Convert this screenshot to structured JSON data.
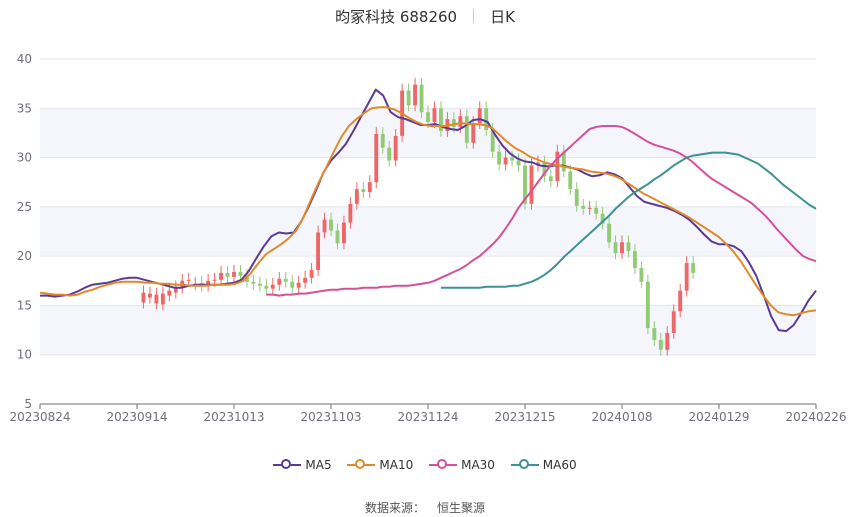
{
  "header": {
    "title": "昀冢科技 688260",
    "period": "日K"
  },
  "source": {
    "label": "数据来源：",
    "value": "恒生聚源"
  },
  "colors": {
    "up": "#ee6666",
    "down": "#91cc75",
    "ma5": "#5b3a96",
    "ma10": "#e08a2c",
    "ma30": "#d4519a",
    "ma60": "#3d9292"
  },
  "chart_data": {
    "type": "candlestick",
    "ylim": [
      5,
      40
    ],
    "y_ticks": [
      "5",
      "10",
      "15",
      "20",
      "25",
      "30",
      "35",
      "40"
    ],
    "x_ticks": [
      "20230824",
      "20230914",
      "20231013",
      "20231103",
      "20231124",
      "20231215",
      "20240108",
      "20240129",
      "20240226"
    ],
    "x_tick_positions": [
      0,
      15,
      30,
      45,
      60,
      75,
      90,
      105,
      120
    ],
    "series": [
      {
        "name": "MA5",
        "values": [
          16.0,
          16.0,
          15.9,
          16.0,
          16.1,
          16.4,
          16.8,
          17.1,
          17.2,
          17.3,
          17.5,
          17.7,
          17.8,
          17.8,
          17.6,
          17.4,
          17.2,
          17.0,
          16.8,
          16.8,
          17.0,
          17.1,
          17.1,
          17.1,
          17.1,
          17.2,
          17.3,
          17.6,
          18.5,
          19.8,
          21.0,
          22.0,
          22.4,
          22.3,
          22.4,
          23.5,
          25.0,
          26.7,
          28.5,
          29.7,
          30.5,
          31.4,
          32.7,
          34.1,
          35.5,
          36.9,
          36.3,
          34.6,
          34.1,
          33.9,
          33.6,
          33.3,
          33.3,
          33.4,
          33.1,
          32.9,
          32.8,
          33.2,
          33.8,
          33.9,
          33.6,
          32.3,
          31.2,
          30.4,
          29.9,
          29.6,
          29.5,
          29.2,
          29.1,
          29.2,
          29.2,
          29.0,
          28.8,
          28.4,
          28.1,
          28.2,
          28.5,
          28.3,
          27.9,
          27.0,
          26.1,
          25.5,
          25.3,
          25.1,
          24.9,
          24.6,
          24.2,
          23.7,
          23.0,
          22.2,
          21.5,
          21.2,
          21.2,
          21.0,
          20.5,
          19.4,
          18.0,
          16.0,
          13.9,
          12.5,
          12.4,
          13.0,
          14.2,
          15.5,
          16.5
        ]
      },
      {
        "name": "MA10",
        "values": [
          16.3,
          16.2,
          16.1,
          16.1,
          16.0,
          16.1,
          16.4,
          16.6,
          16.9,
          17.1,
          17.3,
          17.4,
          17.4,
          17.4,
          17.3,
          17.3,
          17.2,
          17.2,
          17.1,
          17.1,
          17.0,
          17.0,
          17.0,
          17.1,
          17.1,
          17.1,
          17.2,
          17.5,
          18.3,
          19.3,
          20.2,
          20.7,
          21.2,
          21.8,
          22.6,
          24.0,
          25.8,
          27.5,
          29.0,
          30.6,
          32.1,
          33.2,
          33.9,
          34.5,
          35.0,
          35.1,
          35.1,
          34.9,
          34.5,
          34.0,
          33.6,
          33.3,
          33.2,
          33.2,
          33.2,
          33.4,
          33.5,
          33.4,
          33.4,
          33.3,
          33.0,
          32.3,
          31.6,
          31.0,
          30.6,
          30.1,
          29.8,
          29.5,
          29.3,
          29.2,
          29.0,
          28.9,
          28.8,
          28.6,
          28.5,
          28.4,
          28.2,
          27.9,
          27.4,
          26.9,
          26.4,
          26.0,
          25.6,
          25.2,
          24.8,
          24.4,
          24.0,
          23.5,
          23.0,
          22.5,
          22.0,
          21.3,
          20.5,
          19.5,
          18.3,
          17.1,
          16.0,
          15.0,
          14.3,
          14.1,
          14.0,
          14.2,
          14.4,
          14.5
        ]
      },
      {
        "name": "MA30",
        "values": [
          16.1,
          16.1,
          16.0,
          16.1,
          16.1,
          16.2,
          16.2,
          16.3,
          16.4,
          16.5,
          16.6,
          16.6,
          16.7,
          16.7,
          16.7,
          16.8,
          16.8,
          16.8,
          16.9,
          16.9,
          17.0,
          17.0,
          17.0,
          17.1,
          17.2,
          17.3,
          17.5,
          17.8,
          18.1,
          18.4,
          18.7,
          19.1,
          19.6,
          20.0,
          20.6,
          21.2,
          21.9,
          22.8,
          23.8,
          24.9,
          25.8,
          26.6,
          27.5,
          28.4,
          29.2,
          29.9,
          30.5,
          31.1,
          31.7,
          32.3,
          32.9,
          33.1,
          33.2,
          33.2,
          33.2,
          33.1,
          32.8,
          32.4,
          32.0,
          31.6,
          31.3,
          31.1,
          30.9,
          30.7,
          30.4,
          30.0,
          29.5,
          28.9,
          28.3,
          27.8,
          27.4,
          27.0,
          26.6,
          26.2,
          25.8,
          25.4,
          24.8,
          24.2,
          23.5,
          22.7,
          22.0,
          21.3,
          20.6,
          20.0,
          19.7,
          19.5
        ]
      },
      {
        "name": "MA60",
        "values": [
          16.8,
          16.8,
          16.8,
          16.8,
          16.8,
          16.8,
          16.8,
          16.9,
          16.9,
          16.9,
          16.9,
          17.0,
          17.0,
          17.2,
          17.4,
          17.7,
          18.1,
          18.6,
          19.2,
          19.9,
          20.5,
          21.1,
          21.7,
          22.3,
          22.9,
          23.5,
          24.1,
          24.8,
          25.4,
          26.0,
          26.5,
          26.9,
          27.3,
          27.8,
          28.2,
          28.7,
          29.2,
          29.6,
          30.0,
          30.2,
          30.3,
          30.4,
          30.5,
          30.5,
          30.5,
          30.4,
          30.3,
          30.0,
          29.7,
          29.4,
          28.9,
          28.4,
          27.8,
          27.2,
          26.7,
          26.2,
          25.7,
          25.2,
          24.8
        ]
      },
      {
        "name": "K",
        "values": [
          15.3,
          16.3,
          15.8,
          16.2,
          15.2,
          16.1,
          15.1,
          16.2,
          16.0,
          16.5,
          16.3,
          16.8,
          16.8,
          17.5,
          17.5,
          17.6,
          17.2,
          17.2,
          17.3,
          17.0,
          17.0,
          17.5,
          17.5,
          17.6,
          17.6,
          18.3,
          18.3,
          17.9,
          17.9,
          18.4,
          18.4,
          18.0,
          18.0,
          17.4,
          17.4,
          17.2,
          17.2,
          17.0,
          17.0,
          16.7,
          16.7,
          17.1,
          17.1,
          17.7,
          17.7,
          17.4,
          17.4,
          16.8,
          16.8,
          17.3,
          17.3,
          17.8,
          17.8,
          18.6,
          18.6,
          22.4,
          22.4,
          23.7,
          23.7,
          22.6,
          22.6,
          21.3,
          21.3,
          23.4,
          23.4,
          25.3,
          25.3,
          26.8,
          26.8,
          26.5,
          26.5,
          27.5,
          27.5,
          32.4,
          32.4,
          31.0,
          31.0,
          29.7,
          29.7,
          32.2,
          32.2,
          36.8,
          36.8,
          35.3,
          35.3,
          37.4,
          37.4,
          34.6,
          34.6,
          33.6,
          33.6,
          35.0,
          35.0,
          32.7,
          32.7,
          33.9,
          33.9,
          33.1,
          33.1,
          34.2,
          34.2,
          31.5,
          31.5,
          33.5,
          33.5,
          35.0,
          35.0,
          32.8,
          32.8,
          30.6,
          30.6,
          29.3,
          29.3,
          30.0,
          30.0,
          29.7,
          29.7,
          29.2,
          29.2,
          25.3,
          25.3,
          29.2,
          29.2,
          29.5,
          29.5,
          28.1,
          28.1,
          27.6,
          27.6,
          30.6,
          30.6,
          28.6,
          28.6,
          26.8,
          26.8,
          25.1,
          25.1,
          24.8,
          24.8,
          24.9,
          24.9,
          24.3,
          24.3,
          23.3,
          23.3,
          21.4,
          21.4,
          20.3,
          20.3,
          21.4,
          21.4,
          20.5,
          20.5,
          18.8,
          18.8,
          17.4,
          17.4,
          12.7,
          12.7,
          11.5,
          11.5,
          10.5,
          10.5,
          12.2,
          12.2,
          14.4,
          14.4,
          16.5,
          16.5,
          19.3,
          19.3,
          18.3
        ]
      }
    ]
  }
}
